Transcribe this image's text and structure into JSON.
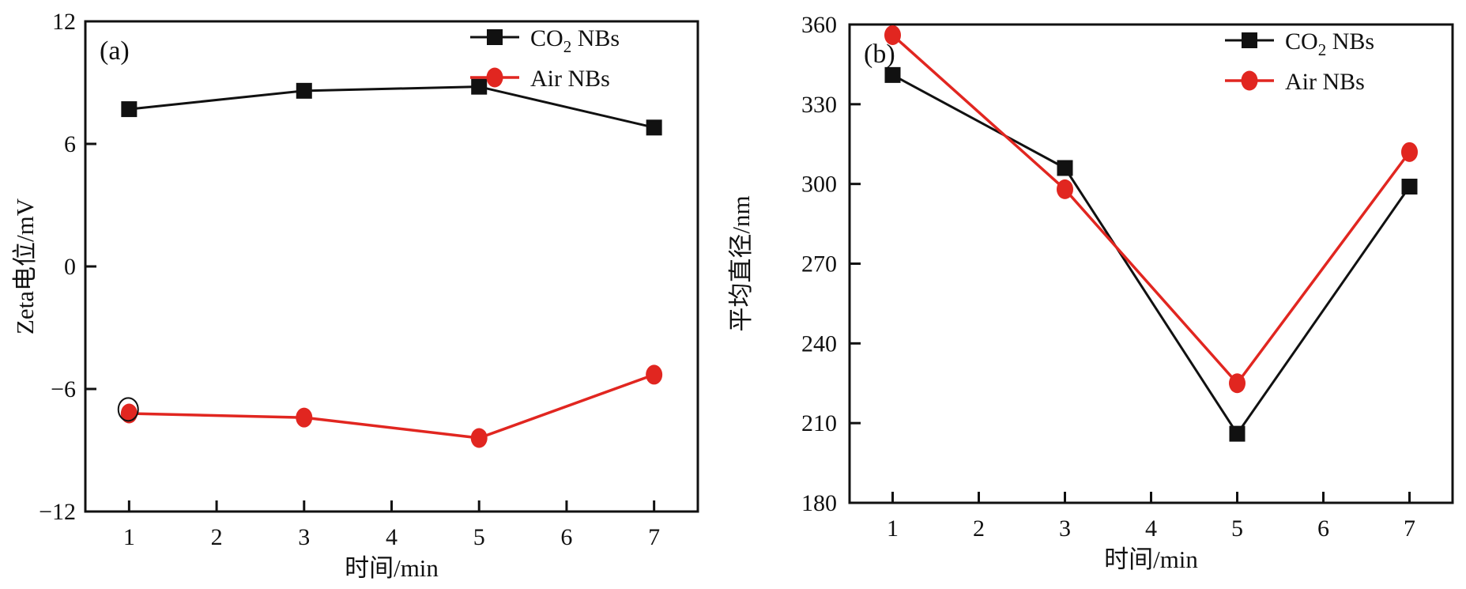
{
  "figure": {
    "background": "#ffffff",
    "axis_color": "#111111",
    "series_colors": {
      "co2_nbs": "#111111",
      "air_nbs": "#e12620"
    }
  },
  "chart_data": [
    {
      "id": "panel-a",
      "type": "line",
      "panel_label": "(a)",
      "title": "",
      "xlabel": "时间/min",
      "ylabel": "Zeta电位/mV",
      "xlim": [
        0.5,
        7.5
      ],
      "ylim": [
        -12,
        12
      ],
      "xticks": [
        1,
        2,
        3,
        4,
        5,
        6,
        7
      ],
      "yticks": [
        -12,
        -6,
        0,
        6,
        12
      ],
      "grid": false,
      "legend_position": "top-right",
      "x": [
        1,
        3,
        5,
        7
      ],
      "series": [
        {
          "name": "CO₂ NBs",
          "label_parts": [
            {
              "t": "CO"
            },
            {
              "t": "2",
              "sub": true
            },
            {
              "t": " NBs"
            }
          ],
          "marker": "square",
          "color": "#111111",
          "line_width": 3,
          "values": [
            7.7,
            8.6,
            8.8,
            6.8
          ]
        },
        {
          "name": "Air NBs",
          "label_parts": [
            {
              "t": "Air NBs"
            }
          ],
          "marker": "circle",
          "color": "#e12620",
          "line_width": 3.5,
          "values": [
            -7.2,
            -7.4,
            -8.4,
            -5.3
          ]
        }
      ],
      "annotations": [
        {
          "type": "open-circle",
          "x": 0.99,
          "y": -7.0,
          "note": "hollow black circle overlapping first Air NBs point"
        }
      ]
    },
    {
      "id": "panel-b",
      "type": "line",
      "panel_label": "(b)",
      "title": "",
      "xlabel": "时间/min",
      "ylabel": "平均直径/nm",
      "xlim": [
        0.5,
        7.5
      ],
      "ylim": [
        180,
        360
      ],
      "xticks": [
        1,
        2,
        3,
        4,
        5,
        6,
        7
      ],
      "yticks": [
        180,
        210,
        240,
        270,
        300,
        330,
        360
      ],
      "grid": false,
      "legend_position": "top-right",
      "x": [
        1,
        3,
        5,
        7
      ],
      "series": [
        {
          "name": "CO₂ NBs",
          "label_parts": [
            {
              "t": "CO"
            },
            {
              "t": "2",
              "sub": true
            },
            {
              "t": " NBs"
            }
          ],
          "marker": "square",
          "color": "#111111",
          "line_width": 3,
          "values": [
            341,
            306,
            206,
            299
          ]
        },
        {
          "name": "Air NBs",
          "label_parts": [
            {
              "t": "Air NBs"
            }
          ],
          "marker": "circle",
          "color": "#e12620",
          "line_width": 3.5,
          "values": [
            356,
            298,
            225,
            312
          ]
        }
      ],
      "annotations": []
    }
  ]
}
